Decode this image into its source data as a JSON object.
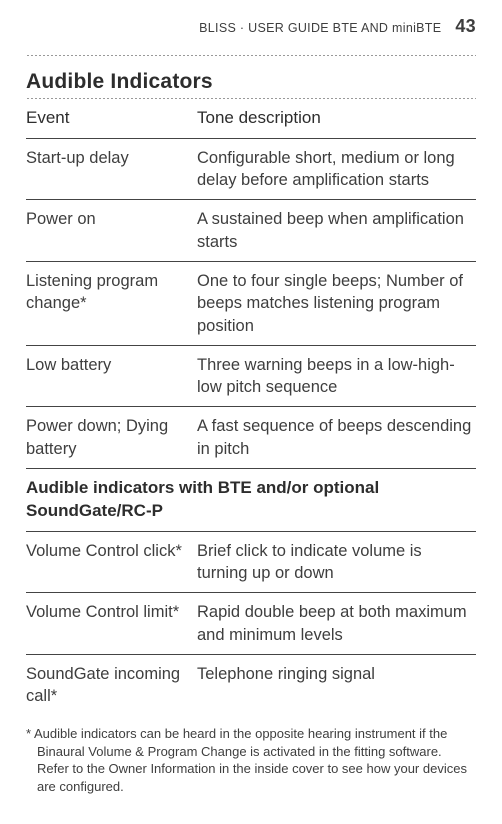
{
  "runningHead": {
    "text": "BLISS · USER GUIDE BTE AND miniBTE",
    "pageNumber": "43"
  },
  "title": "Audible Indicators",
  "columns": {
    "event": "Event",
    "desc": "Tone description"
  },
  "rows1": [
    {
      "event": "Start-up delay",
      "desc": "Configurable short, medium or long delay before amplification starts"
    },
    {
      "event": "Power on",
      "desc": "A sustained beep when amplification starts"
    },
    {
      "event": "Listening program change*",
      "desc": "One to four single beeps; Number of beeps matches listening program position"
    },
    {
      "event": "Low battery",
      "desc": "Three warning beeps in a low-high-low pitch sequence"
    },
    {
      "event": "Power down; Dying battery",
      "desc": "A fast sequence of beeps descending in pitch"
    }
  ],
  "subhead": "Audible indicators with BTE and/or optional SoundGate/RC-P",
  "rows2": [
    {
      "event": "Volume Control click*",
      "desc": "Brief click to indicate volume is turning up or down"
    },
    {
      "event": "Volume Control limit*",
      "desc": "Rapid double beep at both maximum and minimum levels"
    },
    {
      "event": "SoundGate incoming call*",
      "desc": "Telephone ringing signal"
    }
  ],
  "footnote": "* Audible indicators can be heard in the opposite hearing instrument if the Binaural Volume & Program Change is activated in the fitting software. Refer to the Owner Information in the inside cover to see how your devices are configured."
}
